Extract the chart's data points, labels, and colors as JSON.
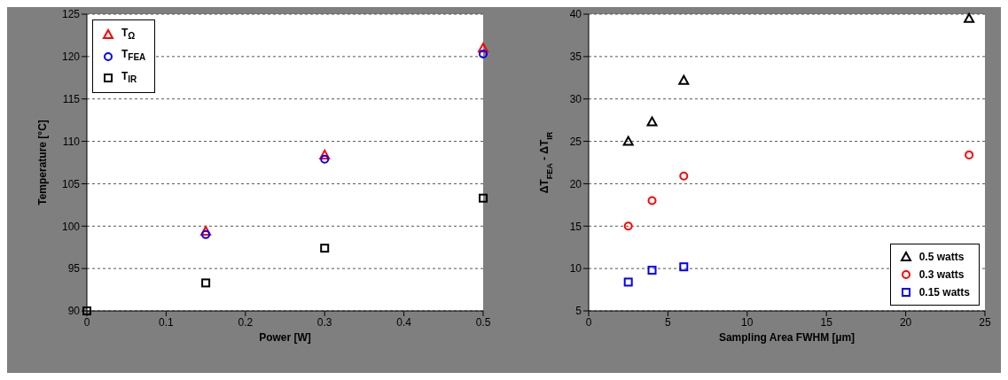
{
  "chart_data": [
    {
      "type": "scatter",
      "xlabel": "Power [W]",
      "ylabel": "Temperature [°C]",
      "xlim": [
        0,
        0.5
      ],
      "xticks": [
        0,
        0.1,
        0.2,
        0.3,
        0.4,
        0.5
      ],
      "ylim": [
        90,
        125
      ],
      "yticks": [
        90,
        95,
        100,
        105,
        110,
        115,
        120,
        125
      ],
      "grid": "y",
      "legend": "top left",
      "x": [
        0,
        0.15,
        0.3,
        0.5
      ],
      "series": [
        {
          "name": "T$_{Ω}$",
          "color": "#ff0000",
          "marker": "triangle",
          "values": [
            null,
            99.4,
            108.4,
            121
          ]
        },
        {
          "name": "T$_{FEA}$",
          "color": "#0000ff",
          "marker": "circle",
          "values": [
            null,
            99,
            107.9,
            120.3
          ]
        },
        {
          "name": "T$_{IR}$",
          "color": "#000000",
          "marker": "square",
          "values": [
            90,
            93.3,
            97.4,
            103.3
          ]
        }
      ]
    },
    {
      "type": "scatter",
      "xlabel": "Sampling Area FWHM [µm]",
      "ylabel": "ΔT$_{FEA}$ - ΔT$_{IR}$",
      "xlim": [
        0,
        25
      ],
      "xticks": [
        0,
        5,
        10,
        15,
        20,
        25
      ],
      "ylim": [
        5,
        40
      ],
      "yticks": [
        5,
        10,
        15,
        20,
        25,
        30,
        35,
        40
      ],
      "grid": "y",
      "legend": "bottom right",
      "series": [
        {
          "name": "0.5 watts",
          "color": "#000000",
          "marker": "triangle",
          "x": [
            2.5,
            4,
            6,
            24
          ],
          "values": [
            25,
            27.3,
            32.2,
            39.5
          ]
        },
        {
          "name": "0.3 watts",
          "color": "#ff0000",
          "marker": "circle",
          "x": [
            2.5,
            4,
            6,
            24
          ],
          "values": [
            15,
            18,
            20.9,
            23.4
          ]
        },
        {
          "name": "0.15 watts",
          "color": "#0000ff",
          "marker": "square",
          "x": [
            2.5,
            4,
            6
          ],
          "values": [
            8.4,
            9.8,
            10.2
          ]
        }
      ]
    }
  ]
}
